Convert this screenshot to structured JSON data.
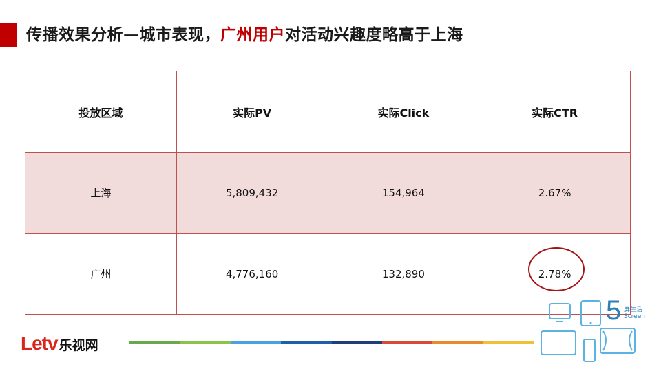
{
  "title": {
    "prefix": "传播效果分析—城市表现，",
    "highlight": "广州用户",
    "suffix": "对活动兴趣度略高于上海"
  },
  "table": {
    "headers": [
      "投放区域",
      "实际PV",
      "实际Click",
      "实际CTR"
    ],
    "rows": [
      [
        "上海",
        "5,809,432",
        "154,964",
        "2.67%"
      ],
      [
        "广州",
        "4,776,160",
        "132,890",
        "2.78%"
      ]
    ]
  },
  "footer": {
    "logo_text": "Letv",
    "logo_cn": "乐视网",
    "brand_number": "5",
    "brand_line1": "屏生活",
    "brand_line2": "Screen"
  },
  "colors": {
    "accent": "#c00000",
    "table_border": "#c0504d",
    "row_highlight": "#f2dcdb",
    "brand_blue": "#2a7fb8"
  }
}
